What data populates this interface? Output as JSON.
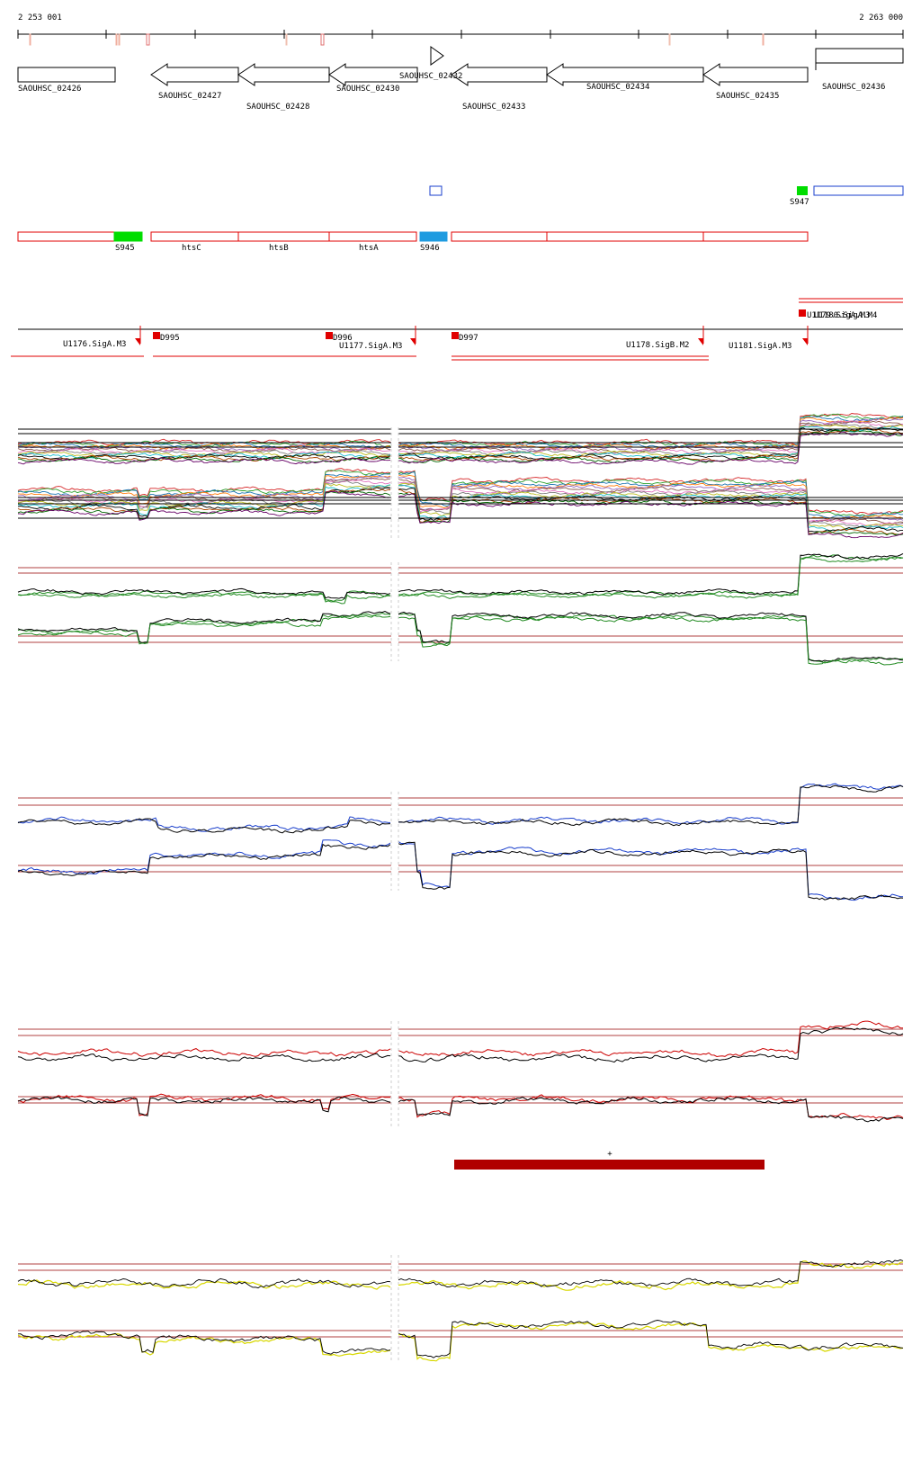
{
  "axis": {
    "start_label": "2 253 001",
    "end_label": "2 263 000"
  },
  "genes": [
    {
      "name": "SAOUHSC_02426",
      "strand": "+",
      "shape": "box"
    },
    {
      "name": "SAOUHSC_02427",
      "strand": "-",
      "shape": "arrow"
    },
    {
      "name": "SAOUHSC_02428",
      "strand": "-",
      "shape": "arrow"
    },
    {
      "name": "SAOUHSC_02430",
      "strand": "-",
      "shape": "arrow"
    },
    {
      "name": "SAOUHSC_02432",
      "strand": "+",
      "shape": "triangle"
    },
    {
      "name": "SAOUHSC_02433",
      "strand": "-",
      "shape": "arrow"
    },
    {
      "name": "SAOUHSC_02434",
      "strand": "-",
      "shape": "arrow"
    },
    {
      "name": "SAOUHSC_02435",
      "strand": "-",
      "shape": "arrow"
    },
    {
      "name": "SAOUHSC_02436",
      "strand": "+",
      "shape": "box"
    }
  ],
  "segments": {
    "top_labels": [
      "S947"
    ],
    "bottom_labels": [
      "S945",
      "htsC",
      "htsB",
      "htsA",
      "S946"
    ]
  },
  "promoters": {
    "labels": [
      "U1176.SigA.M3",
      "D995",
      "D996",
      "U1177.SigA.M3",
      "D997",
      "U1178.SigB.M2",
      "U1181.SigA.M3",
      "U1179.SigA.M3",
      "U1180.SigA.M4"
    ]
  },
  "colors": {
    "outline": "#000000",
    "annotation_red": "#e00000",
    "segment_green": "#00dd00",
    "segment_blue": "#1e9be0",
    "condition_green": "#228b22",
    "condition_blue": "#1a3fcc",
    "condition_red": "#cc0000",
    "condition_yellow": "#d8d800",
    "reference_line": "#b04040",
    "dark_red_bar": "#b00000"
  },
  "feature_bar": {
    "label": "+"
  }
}
